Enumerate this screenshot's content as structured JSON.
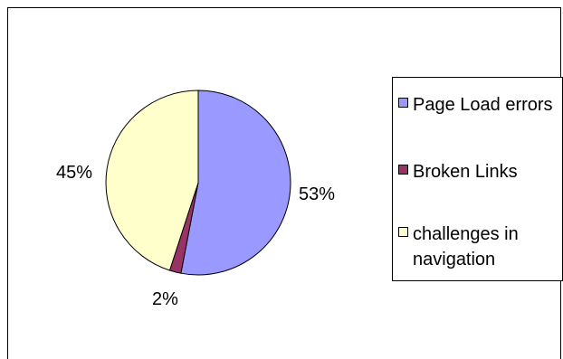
{
  "chart_data": {
    "type": "pie",
    "slices": [
      {
        "label": "Page Load errors",
        "value": 53,
        "pct_label": "53%",
        "color": "#9999ff"
      },
      {
        "label": "Broken Links",
        "value": 2,
        "pct_label": "2%",
        "color": "#993366"
      },
      {
        "label": "challenges in navigation",
        "value": 45,
        "pct_label": "45%",
        "color": "#ffffcc"
      }
    ],
    "legend": {
      "placement": "right",
      "items": [
        {
          "label": "Page Load errors",
          "color": "#9999ff"
        },
        {
          "label": "Broken Links",
          "color": "#993366"
        },
        {
          "label": "challenges in navigation",
          "color": "#ffffcc"
        }
      ]
    }
  }
}
